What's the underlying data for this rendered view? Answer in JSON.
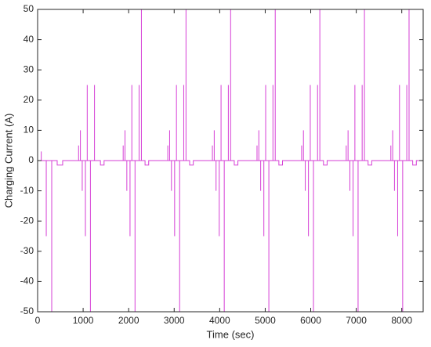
{
  "chart_data": {
    "type": "line",
    "x_label": "Time (sec)",
    "y_label": "Charging Current (A)",
    "xlim": [
      0,
      8470
    ],
    "ylim": [
      -50,
      50
    ],
    "xticks": [
      0,
      1000,
      2000,
      3000,
      4000,
      5000,
      6000,
      7000,
      8000
    ],
    "yticks": [
      -50,
      -40,
      -30,
      -20,
      -10,
      0,
      10,
      20,
      30,
      40,
      50
    ],
    "grid": false,
    "series": [
      {
        "color": "#d63fd6",
        "x": [
          0,
          80,
          80,
          80,
          190,
          190,
          190,
          310,
          310,
          310,
          430,
          430,
          550,
          550,
          900,
          900,
          900,
          940,
          940,
          940,
          980,
          980,
          980,
          1050,
          1050,
          1050,
          1090,
          1090,
          1090,
          1160,
          1160,
          1160,
          1250,
          1250,
          1250,
          1380,
          1380,
          1460,
          1460,
          1880,
          1880,
          1880,
          1920,
          1920,
          1920,
          1960,
          1960,
          1960,
          2030,
          2030,
          2030,
          2070,
          2070,
          2070,
          2140,
          2140,
          2140,
          2230,
          2230,
          2230,
          2280,
          2280,
          2280,
          2360,
          2360,
          2440,
          2440,
          2860,
          2860,
          2860,
          2900,
          2900,
          2900,
          2940,
          2940,
          2940,
          3010,
          3010,
          3010,
          3050,
          3050,
          3050,
          3120,
          3120,
          3120,
          3210,
          3210,
          3210,
          3260,
          3260,
          3260,
          3340,
          3340,
          3420,
          3420,
          3840,
          3840,
          3840,
          3880,
          3880,
          3880,
          3920,
          3920,
          3920,
          3990,
          3990,
          3990,
          4030,
          4030,
          4030,
          4100,
          4100,
          4100,
          4190,
          4190,
          4190,
          4240,
          4240,
          4240,
          4320,
          4320,
          4400,
          4400,
          4820,
          4820,
          4820,
          4860,
          4860,
          4860,
          4900,
          4900,
          4900,
          4970,
          4970,
          4970,
          5010,
          5010,
          5010,
          5080,
          5080,
          5080,
          5170,
          5170,
          5170,
          5220,
          5220,
          5220,
          5300,
          5300,
          5380,
          5380,
          5800,
          5800,
          5800,
          5840,
          5840,
          5840,
          5880,
          5880,
          5880,
          5950,
          5950,
          5950,
          5990,
          5990,
          5990,
          6060,
          6060,
          6060,
          6150,
          6150,
          6150,
          6200,
          6200,
          6200,
          6280,
          6280,
          6360,
          6360,
          6780,
          6780,
          6780,
          6820,
          6820,
          6820,
          6860,
          6860,
          6860,
          6930,
          6930,
          6930,
          6970,
          6970,
          6970,
          7040,
          7040,
          7040,
          7130,
          7130,
          7130,
          7180,
          7180,
          7180,
          7260,
          7260,
          7340,
          7340,
          7760,
          7760,
          7760,
          7800,
          7800,
          7800,
          7840,
          7840,
          7840,
          7910,
          7910,
          7910,
          7950,
          7950,
          7950,
          8020,
          8020,
          8020,
          8110,
          8110,
          8110,
          8160,
          8160,
          8160,
          8240,
          8240,
          8320,
          8320,
          8470
        ],
        "values": [
          0,
          0,
          3,
          0,
          0,
          -25,
          0,
          0,
          -50,
          0,
          0,
          -1.5,
          -1.5,
          0,
          0,
          5,
          0,
          0,
          10,
          0,
          0,
          -10,
          0,
          0,
          -25,
          0,
          0,
          25,
          0,
          0,
          -50,
          0,
          0,
          25,
          0,
          0,
          -1.5,
          -1.5,
          0,
          0,
          5,
          0,
          0,
          10,
          0,
          0,
          -10,
          0,
          0,
          -25,
          0,
          0,
          25,
          0,
          0,
          -50,
          0,
          0,
          25,
          0,
          0,
          50,
          0,
          0,
          -1.5,
          -1.5,
          0,
          0,
          5,
          0,
          0,
          10,
          0,
          0,
          -10,
          0,
          0,
          -25,
          0,
          0,
          25,
          0,
          0,
          -50,
          0,
          0,
          25,
          0,
          0,
          50,
          0,
          0,
          -1.5,
          -1.5,
          0,
          0,
          5,
          0,
          0,
          10,
          0,
          0,
          -10,
          0,
          0,
          -25,
          0,
          0,
          25,
          0,
          0,
          -50,
          0,
          0,
          25,
          0,
          0,
          50,
          0,
          0,
          -1.5,
          -1.5,
          0,
          0,
          5,
          0,
          0,
          10,
          0,
          0,
          -10,
          0,
          0,
          -25,
          0,
          0,
          25,
          0,
          0,
          -50,
          0,
          0,
          25,
          0,
          0,
          50,
          0,
          0,
          -1.5,
          -1.5,
          0,
          0,
          5,
          0,
          0,
          10,
          0,
          0,
          -10,
          0,
          0,
          -25,
          0,
          0,
          25,
          0,
          0,
          -50,
          0,
          0,
          25,
          0,
          0,
          50,
          0,
          0,
          -1.5,
          -1.5,
          0,
          0,
          5,
          0,
          0,
          10,
          0,
          0,
          -10,
          0,
          0,
          -25,
          0,
          0,
          25,
          0,
          0,
          -50,
          0,
          0,
          25,
          0,
          0,
          50,
          0,
          0,
          -1.5,
          -1.5,
          0,
          0,
          5,
          0,
          0,
          10,
          0,
          0,
          -10,
          0,
          0,
          -25,
          0,
          0,
          25,
          0,
          0,
          -50,
          0,
          0,
          25,
          0,
          0,
          50,
          0,
          0,
          -1.5,
          -1.5,
          0,
          0
        ]
      }
    ]
  }
}
